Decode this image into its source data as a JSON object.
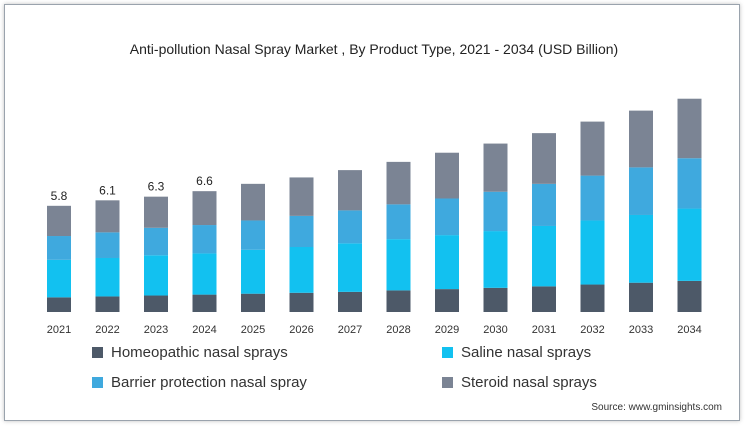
{
  "chart_data": {
    "type": "bar",
    "stacked": true,
    "title": "Anti-pollution Nasal Spray Market , By Product Type, 2021 - 2034 (USD Billion)",
    "xlabel": "",
    "ylabel": "",
    "ylim": [
      0,
      13
    ],
    "grid": false,
    "legend_position": "bottom",
    "categories": [
      "2021",
      "2022",
      "2023",
      "2024",
      "2025",
      "2026",
      "2027",
      "2028",
      "2029",
      "2030",
      "2031",
      "2032",
      "2033",
      "2034"
    ],
    "series": [
      {
        "name": "Homeopathic nasal sprays",
        "color": "#4d5968",
        "values": [
          0.8,
          0.85,
          0.9,
          0.95,
          1.0,
          1.05,
          1.1,
          1.18,
          1.25,
          1.32,
          1.4,
          1.5,
          1.6,
          1.7
        ]
      },
      {
        "name": "Saline nasal sprays",
        "color": "#12c1f0",
        "values": [
          2.05,
          2.1,
          2.2,
          2.25,
          2.4,
          2.5,
          2.65,
          2.8,
          2.95,
          3.1,
          3.3,
          3.5,
          3.7,
          3.95
        ]
      },
      {
        "name": "Barrier protection nasal spray",
        "color": "#3fa9de",
        "values": [
          1.3,
          1.4,
          1.5,
          1.55,
          1.6,
          1.7,
          1.8,
          1.9,
          2.0,
          2.15,
          2.3,
          2.45,
          2.6,
          2.75
        ]
      },
      {
        "name": "Steroid nasal sprays",
        "color": "#7b8494",
        "values": [
          1.65,
          1.75,
          1.7,
          1.85,
          2.0,
          2.1,
          2.2,
          2.32,
          2.5,
          2.63,
          2.77,
          2.95,
          3.1,
          3.25
        ]
      }
    ],
    "totals_labels": [
      "5.8",
      "6.1",
      "6.3",
      "6.6"
    ]
  },
  "legend_order": [
    0,
    1,
    2,
    3
  ],
  "source": "Source: www.gminsights.com"
}
